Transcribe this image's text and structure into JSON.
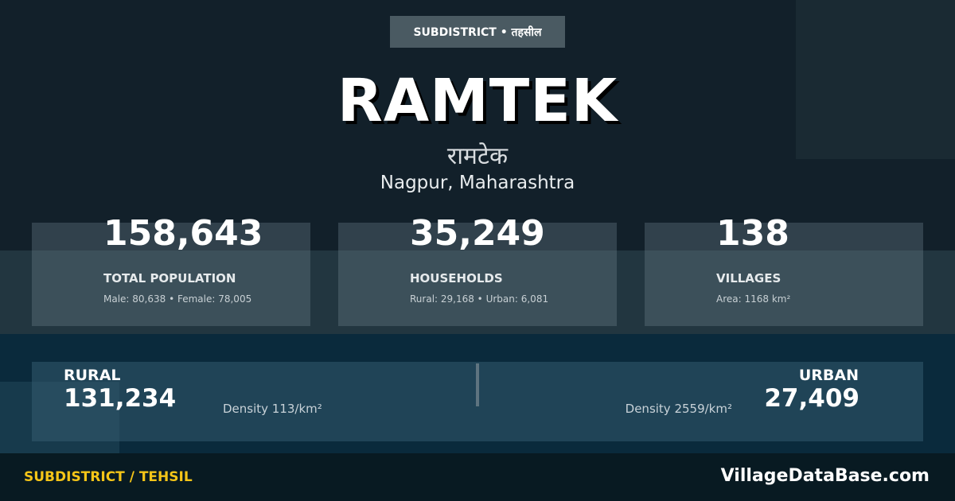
{
  "badge": "SUBDISTRICT • तहसील",
  "title": "RAMTEK",
  "title_hindi": "रामटेक",
  "location": "Nagpur, Maharashtra",
  "stats": [
    {
      "value": "158,643",
      "label": "TOTAL POPULATION",
      "sub": "Male: 80,638 • Female: 78,005"
    },
    {
      "value": "35,249",
      "label": "HOUSEHOLDS",
      "sub": "Rural: 29,168 • Urban: 6,081"
    },
    {
      "value": "138",
      "label": "VILLAGES",
      "sub": "Area: 1168 km²"
    }
  ],
  "rural": {
    "label": "RURAL",
    "value": "131,234",
    "density": "Density 113/km²"
  },
  "urban": {
    "label": "URBAN",
    "value": "27,409",
    "density": "Density 2559/km²"
  },
  "footer": {
    "category": "SUBDISTRICT / TEHSIL",
    "site": "VillageDataBase.com"
  },
  "colors": {
    "accent": "#f5c518",
    "background": "#12202a"
  }
}
